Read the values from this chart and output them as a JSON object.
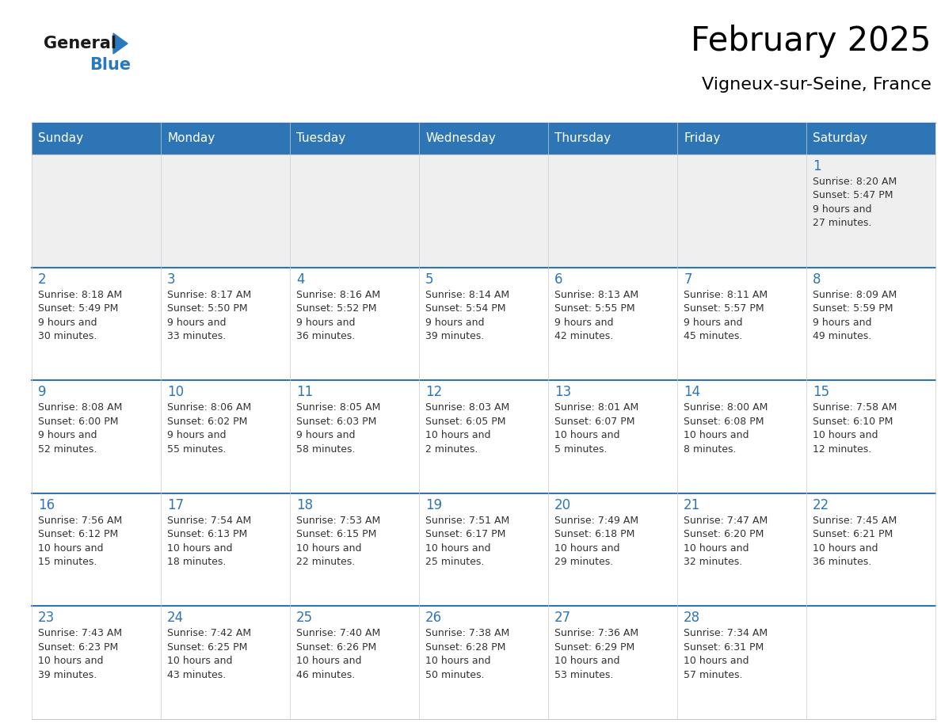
{
  "title": "February 2025",
  "subtitle": "Vigneux-sur-Seine, France",
  "days_of_week": [
    "Sunday",
    "Monday",
    "Tuesday",
    "Wednesday",
    "Thursday",
    "Friday",
    "Saturday"
  ],
  "header_bg": "#2E75B6",
  "header_text": "#FFFFFF",
  "cell_bg_light": "#FFFFFF",
  "cell_bg_shaded": "#EFEFEF",
  "text_color": "#333333",
  "border_color": "#2E75B6",
  "day_number_color": "#2E75B6",
  "logo_general_color": "#1a1a1a",
  "logo_blue_color": "#2979BE",
  "calendar_data": [
    [
      null,
      null,
      null,
      null,
      null,
      null,
      {
        "day": 1,
        "sunrise": "8:20 AM",
        "sunset": "5:47 PM",
        "daylight": "9 hours and 27 minutes."
      }
    ],
    [
      {
        "day": 2,
        "sunrise": "8:18 AM",
        "sunset": "5:49 PM",
        "daylight": "9 hours and 30 minutes."
      },
      {
        "day": 3,
        "sunrise": "8:17 AM",
        "sunset": "5:50 PM",
        "daylight": "9 hours and 33 minutes."
      },
      {
        "day": 4,
        "sunrise": "8:16 AM",
        "sunset": "5:52 PM",
        "daylight": "9 hours and 36 minutes."
      },
      {
        "day": 5,
        "sunrise": "8:14 AM",
        "sunset": "5:54 PM",
        "daylight": "9 hours and 39 minutes."
      },
      {
        "day": 6,
        "sunrise": "8:13 AM",
        "sunset": "5:55 PM",
        "daylight": "9 hours and 42 minutes."
      },
      {
        "day": 7,
        "sunrise": "8:11 AM",
        "sunset": "5:57 PM",
        "daylight": "9 hours and 45 minutes."
      },
      {
        "day": 8,
        "sunrise": "8:09 AM",
        "sunset": "5:59 PM",
        "daylight": "9 hours and 49 minutes."
      }
    ],
    [
      {
        "day": 9,
        "sunrise": "8:08 AM",
        "sunset": "6:00 PM",
        "daylight": "9 hours and 52 minutes."
      },
      {
        "day": 10,
        "sunrise": "8:06 AM",
        "sunset": "6:02 PM",
        "daylight": "9 hours and 55 minutes."
      },
      {
        "day": 11,
        "sunrise": "8:05 AM",
        "sunset": "6:03 PM",
        "daylight": "9 hours and 58 minutes."
      },
      {
        "day": 12,
        "sunrise": "8:03 AM",
        "sunset": "6:05 PM",
        "daylight": "10 hours and 2 minutes."
      },
      {
        "day": 13,
        "sunrise": "8:01 AM",
        "sunset": "6:07 PM",
        "daylight": "10 hours and 5 minutes."
      },
      {
        "day": 14,
        "sunrise": "8:00 AM",
        "sunset": "6:08 PM",
        "daylight": "10 hours and 8 minutes."
      },
      {
        "day": 15,
        "sunrise": "7:58 AM",
        "sunset": "6:10 PM",
        "daylight": "10 hours and 12 minutes."
      }
    ],
    [
      {
        "day": 16,
        "sunrise": "7:56 AM",
        "sunset": "6:12 PM",
        "daylight": "10 hours and 15 minutes."
      },
      {
        "day": 17,
        "sunrise": "7:54 AM",
        "sunset": "6:13 PM",
        "daylight": "10 hours and 18 minutes."
      },
      {
        "day": 18,
        "sunrise": "7:53 AM",
        "sunset": "6:15 PM",
        "daylight": "10 hours and 22 minutes."
      },
      {
        "day": 19,
        "sunrise": "7:51 AM",
        "sunset": "6:17 PM",
        "daylight": "10 hours and 25 minutes."
      },
      {
        "day": 20,
        "sunrise": "7:49 AM",
        "sunset": "6:18 PM",
        "daylight": "10 hours and 29 minutes."
      },
      {
        "day": 21,
        "sunrise": "7:47 AM",
        "sunset": "6:20 PM",
        "daylight": "10 hours and 32 minutes."
      },
      {
        "day": 22,
        "sunrise": "7:45 AM",
        "sunset": "6:21 PM",
        "daylight": "10 hours and 36 minutes."
      }
    ],
    [
      {
        "day": 23,
        "sunrise": "7:43 AM",
        "sunset": "6:23 PM",
        "daylight": "10 hours and 39 minutes."
      },
      {
        "day": 24,
        "sunrise": "7:42 AM",
        "sunset": "6:25 PM",
        "daylight": "10 hours and 43 minutes."
      },
      {
        "day": 25,
        "sunrise": "7:40 AM",
        "sunset": "6:26 PM",
        "daylight": "10 hours and 46 minutes."
      },
      {
        "day": 26,
        "sunrise": "7:38 AM",
        "sunset": "6:28 PM",
        "daylight": "10 hours and 50 minutes."
      },
      {
        "day": 27,
        "sunrise": "7:36 AM",
        "sunset": "6:29 PM",
        "daylight": "10 hours and 53 minutes."
      },
      {
        "day": 28,
        "sunrise": "7:34 AM",
        "sunset": "6:31 PM",
        "daylight": "10 hours and 57 minutes."
      },
      null
    ]
  ]
}
